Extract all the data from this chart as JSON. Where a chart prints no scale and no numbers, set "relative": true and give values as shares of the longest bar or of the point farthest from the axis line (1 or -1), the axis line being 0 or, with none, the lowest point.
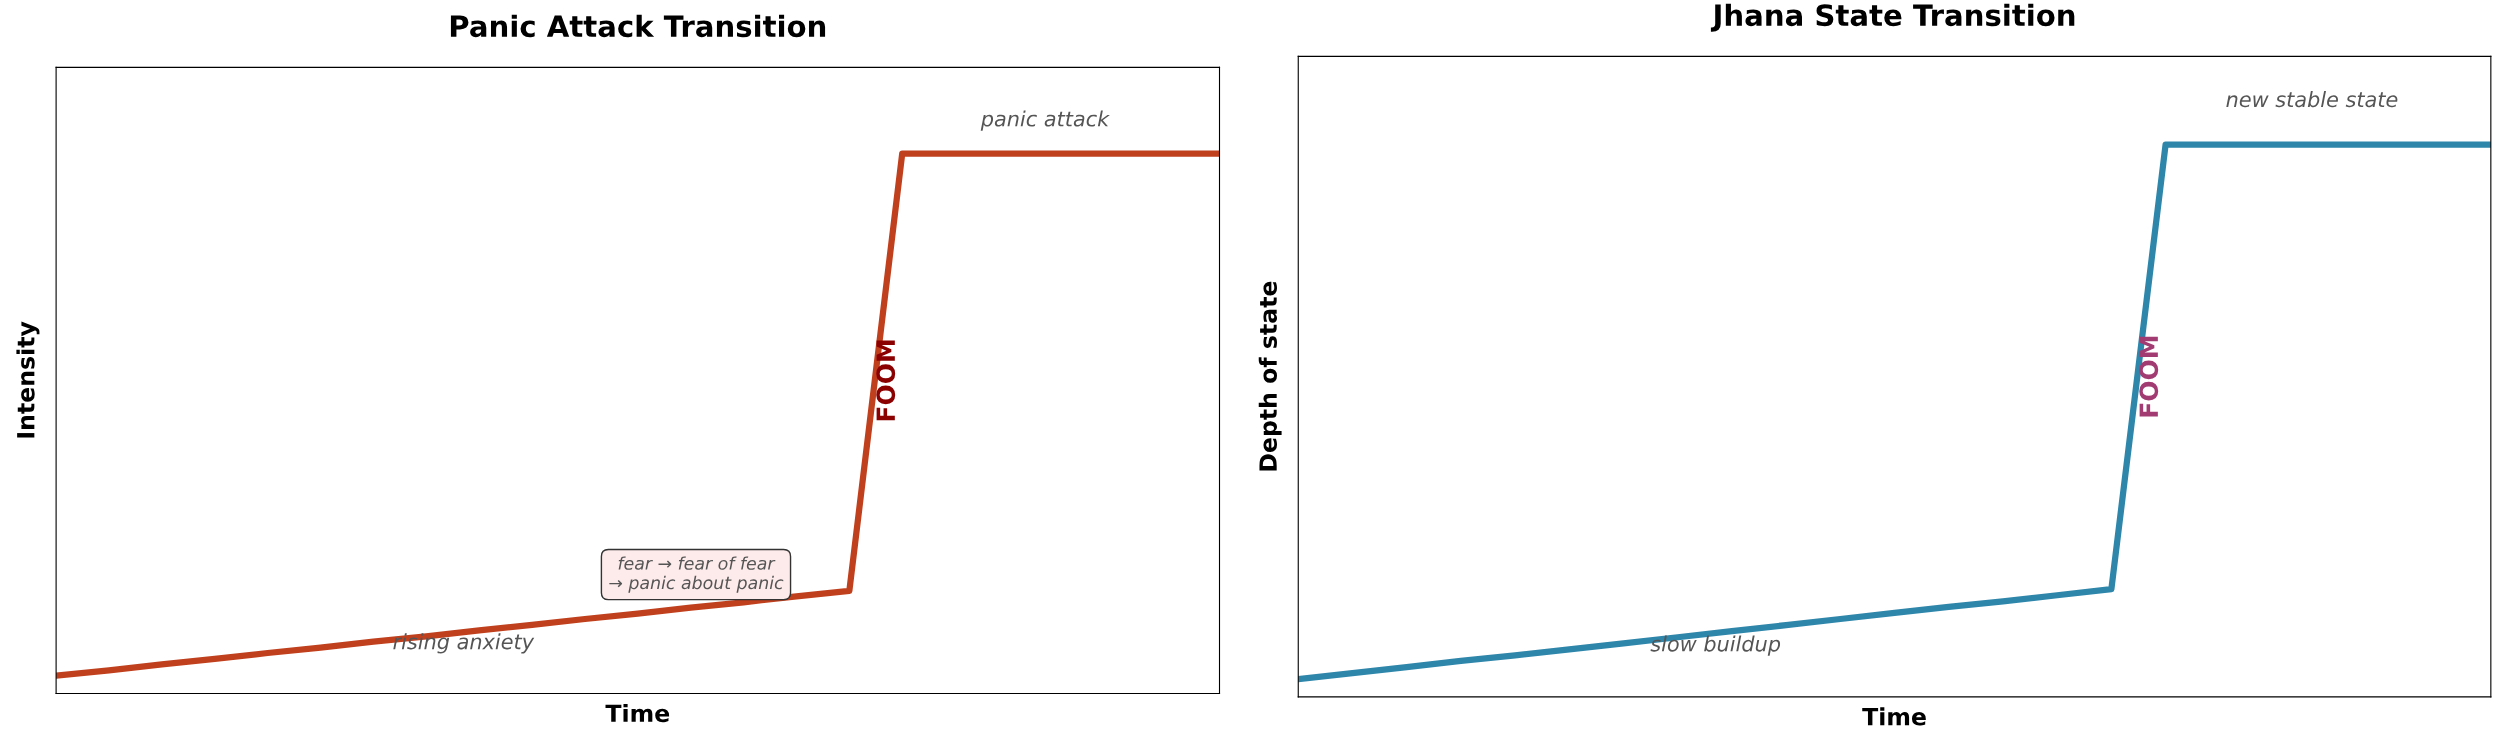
{
  "chart_data": [
    {
      "type": "line",
      "title": "Panic Attack Transition",
      "xlabel": "Time",
      "ylabel": "Intensity",
      "relative": true,
      "categories": [
        null,
        null,
        null,
        null,
        null,
        null,
        null,
        null,
        null,
        null,
        null,
        null,
        null,
        null,
        null,
        null,
        null,
        null,
        null,
        null,
        null,
        null,
        null
      ],
      "series": [
        {
          "color": "#c0401e",
          "values": [
            0.033,
            0.043,
            0.054,
            0.064,
            0.075,
            0.085,
            0.096,
            0.106,
            0.117,
            0.127,
            0.138,
            0.148,
            0.159,
            0.169,
            0.18,
            0.19,
            1,
            1,
            1,
            1,
            1,
            1,
            1
          ]
        }
      ],
      "annotations": [
        "rising anxiety",
        "fear → fear of fear\n→ panic about panic",
        "FOOM",
        "panic attack"
      ],
      "grid": false,
      "legend": false
    },
    {
      "type": "line",
      "title": "Jhana State Transition",
      "xlabel": "Time",
      "ylabel": "Depth of state",
      "relative": true,
      "categories": [
        null,
        null,
        null,
        null,
        null,
        null,
        null,
        null,
        null,
        null,
        null,
        null,
        null,
        null,
        null,
        null,
        null,
        null,
        null,
        null,
        null,
        null,
        null
      ],
      "series": [
        {
          "color": "#2e86ab",
          "values": [
            0.032,
            0.043,
            0.054,
            0.065,
            0.075,
            0.086,
            0.097,
            0.108,
            0.119,
            0.13,
            0.141,
            0.152,
            0.163,
            0.173,
            0.184,
            0.195,
            1,
            1,
            1,
            1,
            1,
            1,
            1
          ]
        }
      ],
      "annotations": [
        "slow buildup",
        "FOOM",
        "new stable state"
      ],
      "grid": false,
      "legend": false
    }
  ]
}
